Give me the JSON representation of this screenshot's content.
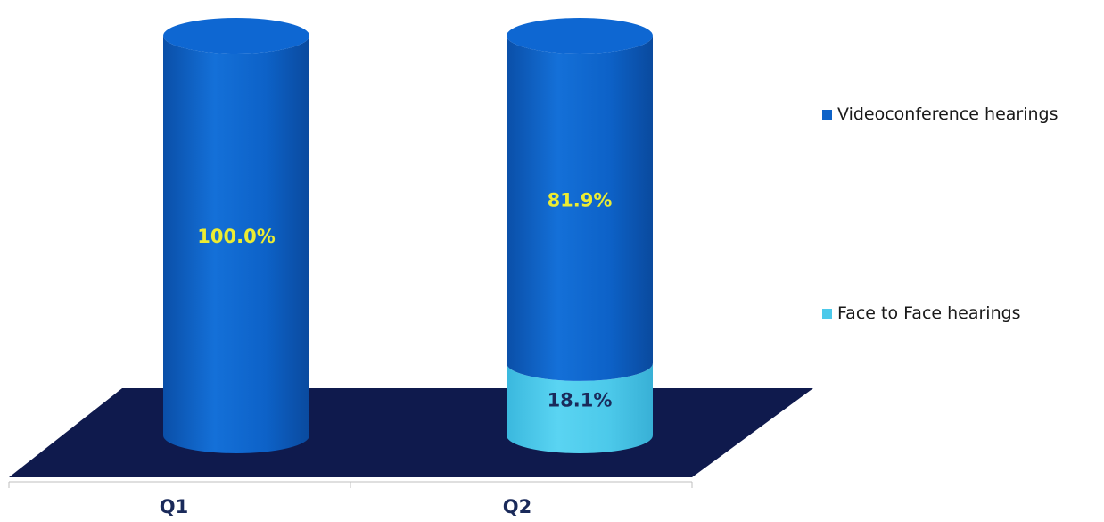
{
  "chart_data": {
    "type": "bar",
    "stacked": true,
    "percent": true,
    "style": "3d-cylinder",
    "categories": [
      "Q1",
      "Q2"
    ],
    "series": [
      {
        "name": "Face to Face hearings",
        "values": [
          0,
          18.1
        ],
        "labels": [
          "",
          "18.1%"
        ],
        "color": "#4cc9ea",
        "label_color": "#1a2a5a"
      },
      {
        "name": "Videoconference hearings",
        "values": [
          100.0,
          81.9
        ],
        "labels": [
          "100.0%",
          "81.9%"
        ],
        "color": "#0d62c8",
        "label_color": "#ecec32"
      }
    ],
    "ylim": [
      0,
      100
    ],
    "floor_color": "#0f1a4d",
    "legend_position": "right",
    "title": "",
    "xlabel": "",
    "ylabel": ""
  }
}
